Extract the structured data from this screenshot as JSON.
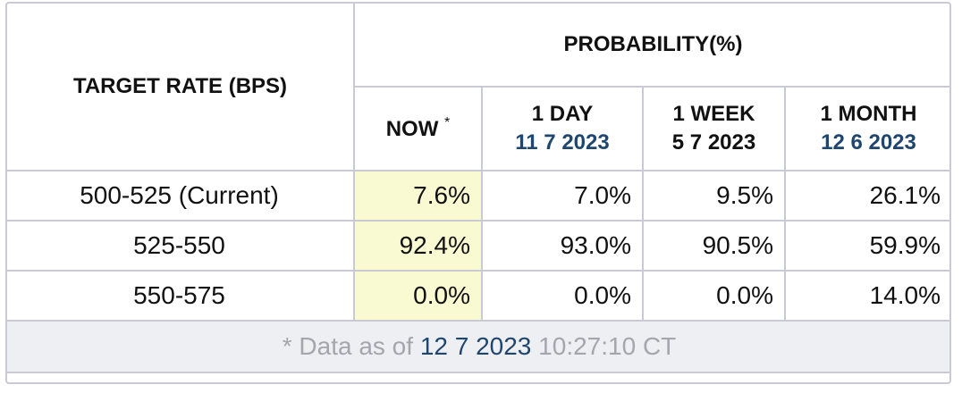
{
  "table": {
    "header": {
      "target_rate": "TARGET RATE (BPS)",
      "probability": "PROBABILITY(%)",
      "columns": [
        {
          "label": "NOW",
          "note": "*"
        },
        {
          "label": "1 DAY",
          "date": "11 7 2023"
        },
        {
          "label": "1 WEEK",
          "date": "5 7 2023"
        },
        {
          "label": "1 MONTH",
          "date": "12 6 2023"
        }
      ]
    },
    "rows": [
      [
        "500-525 (Current)",
        "7.6%",
        "7.0%",
        "9.5%",
        "26.1%"
      ],
      [
        "525-550",
        "92.4%",
        "93.0%",
        "90.5%",
        "59.9%"
      ],
      [
        "550-575",
        "0.0%",
        "0.0%",
        "0.0%",
        "14.0%"
      ]
    ],
    "footer": {
      "prefix": "* Data as of",
      "date": "12 7 2023",
      "time": "10:27:10 CT"
    }
  }
}
